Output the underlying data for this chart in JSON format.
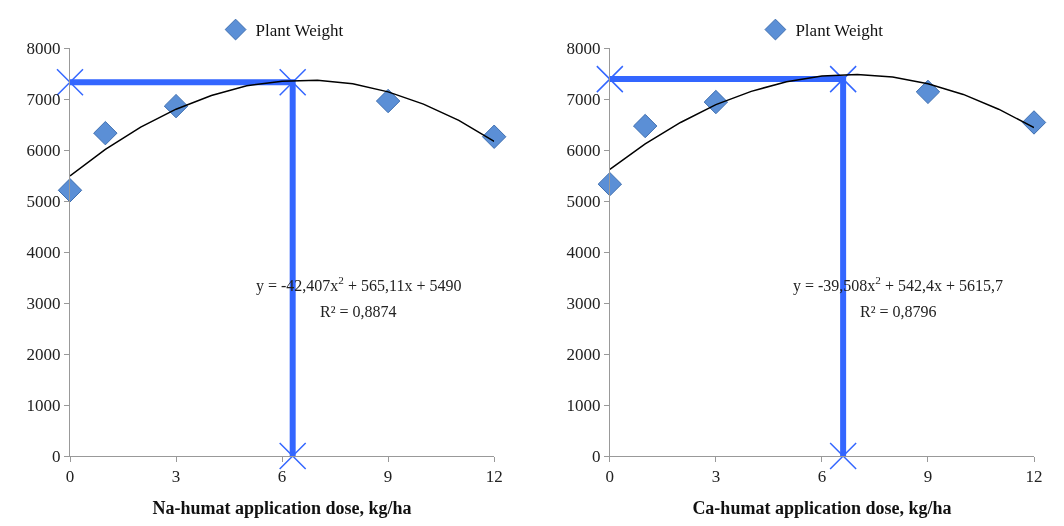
{
  "chart_data": [
    {
      "type": "scatter",
      "xlabel": "Na-humat application dose, kg/ha",
      "xlim": [
        0,
        12
      ],
      "xticks": [
        0,
        3,
        6,
        9,
        12
      ],
      "ylim": [
        0,
        8000
      ],
      "yticks": [
        0,
        1000,
        2000,
        3000,
        4000,
        5000,
        6000,
        7000,
        8000
      ],
      "legend": "top",
      "marker": "diamond",
      "x": [
        0,
        1,
        3,
        9,
        12
      ],
      "series": [
        {
          "name": "Plant Weight",
          "color": "#5b8fd6",
          "values": [
            5210,
            6330,
            6860,
            6960,
            6260
          ]
        },
        {
          "type": "line",
          "color": "#3366ff",
          "marker": "cross",
          "x": [
            0,
            6.3,
            6.3
          ],
          "values": [
            7330,
            7330,
            0
          ]
        },
        {
          "type": "line",
          "color": "#000000",
          "marker": "none",
          "x": [
            0,
            1,
            2,
            3,
            4,
            5,
            6,
            7,
            8,
            9,
            10,
            11,
            12
          ],
          "values": [
            5490,
            6010,
            6450,
            6800,
            7070,
            7260,
            7350,
            7370,
            7300,
            7140,
            6900,
            6580,
            6170
          ]
        }
      ],
      "annotations": [
        "y = -42,407x$^{2}$ + 565,11x + 5490",
        "R² = 0,8874"
      ]
    },
    {
      "type": "scatter",
      "xlabel": "Ca-humat application dose, kg/ha",
      "xlim": [
        0,
        12
      ],
      "xticks": [
        0,
        3,
        6,
        9,
        12
      ],
      "ylim": [
        0,
        8000
      ],
      "yticks": [
        0,
        1000,
        2000,
        3000,
        4000,
        5000,
        6000,
        7000,
        8000
      ],
      "legend": "top",
      "marker": "diamond",
      "x": [
        0,
        1,
        3,
        9,
        12
      ],
      "series": [
        {
          "name": "Plant Weight",
          "color": "#5b8fd6",
          "values": [
            5330,
            6470,
            6940,
            7140,
            6540
          ]
        },
        {
          "type": "line",
          "color": "#3366ff",
          "marker": "cross",
          "x": [
            0,
            6.6,
            6.6
          ],
          "values": [
            7390,
            7390,
            0
          ]
        },
        {
          "type": "line",
          "color": "#000000",
          "marker": "none",
          "x": [
            0,
            1,
            2,
            3,
            4,
            5,
            6,
            7,
            8,
            9,
            10,
            11,
            12
          ],
          "values": [
            5620,
            6120,
            6540,
            6890,
            7150,
            7340,
            7450,
            7480,
            7430,
            7300,
            7090,
            6800,
            6440
          ]
        }
      ],
      "annotations": [
        "y = -39,508x$^{2}$ + 542,4x + 5615,7",
        "R² = 0,8796"
      ]
    }
  ]
}
